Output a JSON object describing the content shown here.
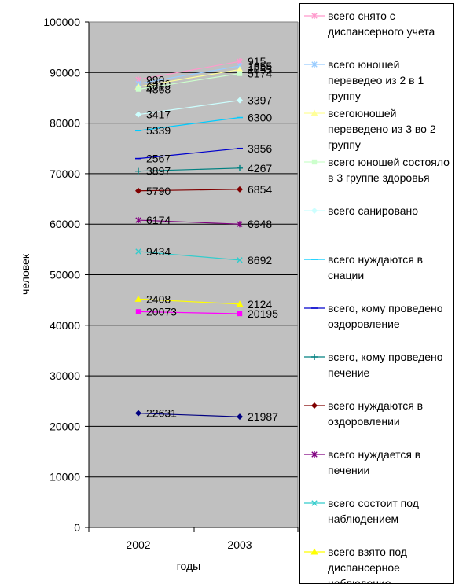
{
  "chart_data": {
    "type": "line",
    "title": "",
    "xlabel": "годы",
    "ylabel": "человек",
    "categories": [
      "2002",
      "2003"
    ],
    "ylim": [
      0,
      100000
    ],
    "yticks": [
      "0",
      "10000",
      "20000",
      "30000",
      "40000",
      "50000",
      "60000",
      "70000",
      "80000",
      "90000",
      "100000"
    ],
    "grid": true,
    "legend_position": "right",
    "series": [
      {
        "name": "всего снято с диспансерного учета",
        "values": [
          88600,
          92200
        ],
        "labels": [
          "990",
          "915"
        ],
        "color": "#ff99cc",
        "marker": "star"
      },
      {
        "name": "всего юношей переведео из 2 в 1 группу",
        "values": [
          87800,
          91300
        ],
        "labels": [
          "1420",
          "1655"
        ],
        "color": "#99ccff",
        "marker": "star"
      },
      {
        "name": "всегоюношей переведено из 3 во 2 группу",
        "values": [
          87200,
          90600
        ],
        "labels": [
          "671",
          "1055"
        ],
        "color": "#ffff99",
        "marker": "triangle"
      },
      {
        "name": "всего юношей состояло в 3 группе здоровья",
        "values": [
          86700,
          89800
        ],
        "labels": [
          "4868",
          "5174"
        ],
        "color": "#ccffcc",
        "marker": "square"
      },
      {
        "name": "всего санировано",
        "values": [
          81700,
          84500
        ],
        "labels": [
          "3417",
          "3397"
        ],
        "color": "#ccffff",
        "marker": "diamond"
      },
      {
        "name": "всего нуждаются в снации",
        "values": [
          78500,
          81100
        ],
        "labels": [
          "5339",
          "6300"
        ],
        "color": "#00ccff",
        "marker": "dash"
      },
      {
        "name": "всего, кому проведено оздоровление",
        "values": [
          73000,
          75000
        ],
        "labels": [
          "2567",
          "3856"
        ],
        "color": "#0000cc",
        "marker": "dash"
      },
      {
        "name": "всего, кому проведено печение",
        "values": [
          70500,
          71100
        ],
        "labels": [
          "3897",
          "4267"
        ],
        "color": "#008080",
        "marker": "plus"
      },
      {
        "name": "всего нуждаются в оздоровлении",
        "values": [
          66600,
          66900
        ],
        "labels": [
          "5790",
          "6854"
        ],
        "color": "#800000",
        "marker": "diamond"
      },
      {
        "name": "всего нуждается в печении",
        "values": [
          60800,
          60000
        ],
        "labels": [
          "6174",
          "6948"
        ],
        "color": "#800080",
        "marker": "star"
      },
      {
        "name": "всего состоит под наблюдением",
        "values": [
          54600,
          52900
        ],
        "labels": [
          "9434",
          "8692"
        ],
        "color": "#33cccc",
        "marker": "x"
      },
      {
        "name": "всего взято под диспансерное наблюдение",
        "values": [
          45200,
          44200
        ],
        "labels": [
          "2408",
          "2124"
        ],
        "color": "#ffff00",
        "marker": "triangle"
      },
      {
        "name": "",
        "values": [
          42700,
          42300
        ],
        "labels": [
          "20073",
          "20195"
        ],
        "color": "#ff00ff",
        "marker": "square"
      },
      {
        "name": "",
        "values": [
          22600,
          21900
        ],
        "labels": [
          "22631",
          "21987"
        ],
        "color": "#000080",
        "marker": "diamond"
      }
    ]
  }
}
